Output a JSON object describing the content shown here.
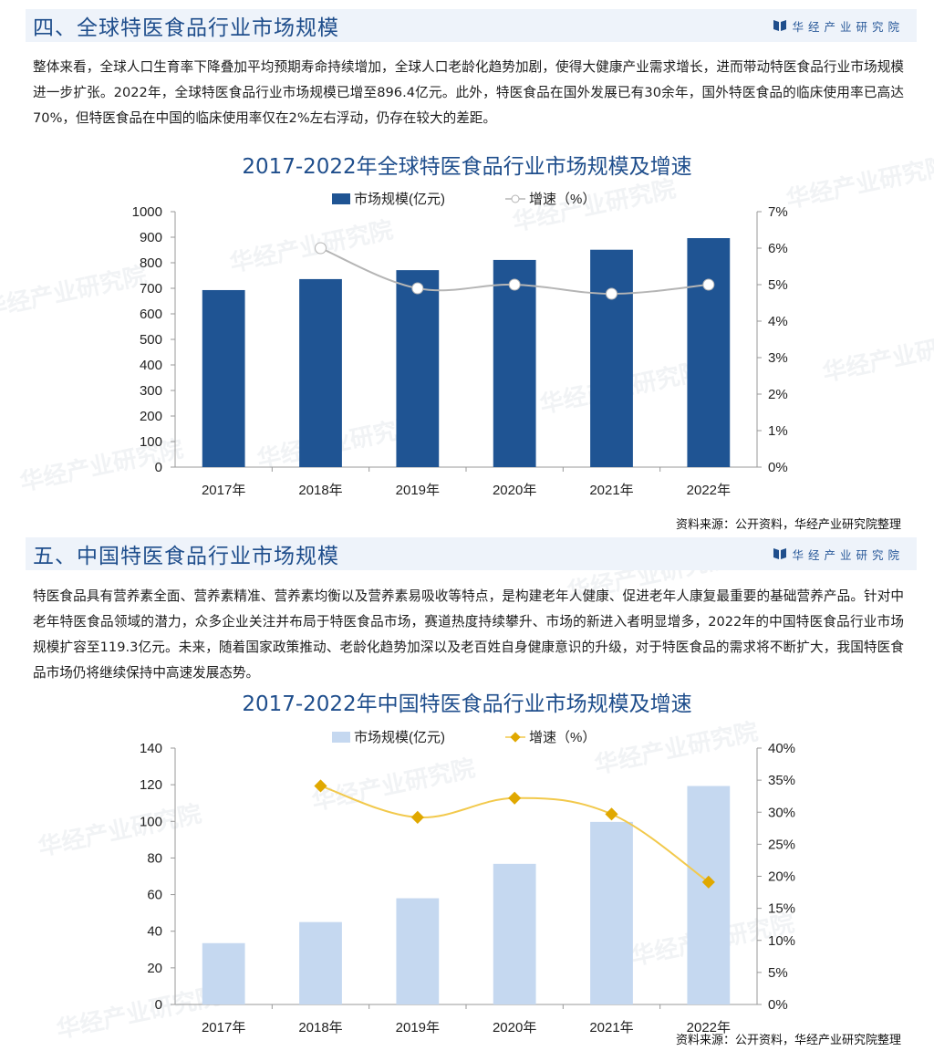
{
  "section4": {
    "title": "四、全球特医食品行业市场规模",
    "brand": "华经产业研究院",
    "paragraph": "整体来看，全球人口生育率下降叠加平均预期寿命持续增加，全球人口老龄化趋势加剧，使得大健康产业需求增长，进而带动特医食品行业市场规模进一步扩张。2022年，全球特医食品行业市场规模已增至896.4亿元。此外，特医食品在国外发展已有30余年，国外特医食品的临床使用率已高达70%，但特医食品在中国的临床使用率仅在2%左右浮动，仍存在较大的差距。",
    "source": "资料来源：公开资料，华经产业研究院整理"
  },
  "section5": {
    "title": "五、中国特医食品行业市场规模",
    "brand": "华经产业研究院",
    "paragraph": "特医食品具有营养素全面、营养素精准、营养素均衡以及营养素易吸收等特点，是构建老年人健康、促进老年人康复最重要的基础营养产品。针对中老年特医食品领域的潜力，众多企业关注并布局于特医食品市场，赛道热度持续攀升、市场的新进入者明显增多，2022年的中国特医食品行业市场规模扩容至119.3亿元。未来，随着国家政策推动、老龄化趋势加深以及老百姓自身健康意识的升级，对于特医食品的需求将不断扩大，我国特医食品市场仍将继续保持中高速发展态势。",
    "source": "资料来源：公开资料，华经产业研究院整理"
  },
  "watermark": "华经产业研究院",
  "colors": {
    "header_bg": "#eef3fa",
    "title": "#1f4e8c",
    "bar_global": "#1f5493",
    "line_global": "#b5b5b5",
    "bar_china": "#c5d8f0",
    "line_china": "#f2c94c",
    "marker_china": "#e0a800"
  },
  "chart_data": [
    {
      "type": "bar",
      "title": "2017-2022年全球特医食品行业市场规模及增速",
      "categories": [
        "2017年",
        "2018年",
        "2019年",
        "2020年",
        "2021年",
        "2022年"
      ],
      "series": [
        {
          "name": "市场规模(亿元)",
          "type": "bar",
          "axis": "left",
          "values": [
            693,
            736,
            771,
            811,
            851,
            896.4
          ]
        },
        {
          "name": "增速（%）",
          "type": "line",
          "axis": "right",
          "values": [
            null,
            6.0,
            4.9,
            5.0,
            4.75,
            5.0
          ]
        }
      ],
      "yleft": {
        "min": 0,
        "max": 1000,
        "ticks": [
          "0",
          "100",
          "200",
          "300",
          "400",
          "500",
          "600",
          "700",
          "800",
          "900",
          "1000"
        ]
      },
      "yright": {
        "min": 0,
        "max": 7,
        "ticks": [
          "0%",
          "1%",
          "2%",
          "3%",
          "4%",
          "5%",
          "6%",
          "7%"
        ]
      },
      "legend_position": "top",
      "grid": false
    },
    {
      "type": "bar",
      "title": "2017-2022年中国特医食品行业市场规模及增速",
      "categories": [
        "2017年",
        "2018年",
        "2019年",
        "2020年",
        "2021年",
        "2022年"
      ],
      "series": [
        {
          "name": "市场规模(亿元)",
          "type": "bar",
          "axis": "left",
          "values": [
            33.5,
            45,
            58,
            76.8,
            99.7,
            119.3
          ]
        },
        {
          "name": "增速（%）",
          "type": "line",
          "axis": "right",
          "values": [
            null,
            34.1,
            29.2,
            32.2,
            29.7,
            19.1
          ]
        }
      ],
      "yleft": {
        "min": 0,
        "max": 140,
        "ticks": [
          "0",
          "20",
          "40",
          "60",
          "80",
          "100",
          "120",
          "140"
        ]
      },
      "yright": {
        "min": 0,
        "max": 40,
        "ticks": [
          "0%",
          "5%",
          "10%",
          "15%",
          "20%",
          "25%",
          "30%",
          "35%",
          "40%"
        ]
      },
      "legend_position": "top",
      "grid": false
    }
  ]
}
